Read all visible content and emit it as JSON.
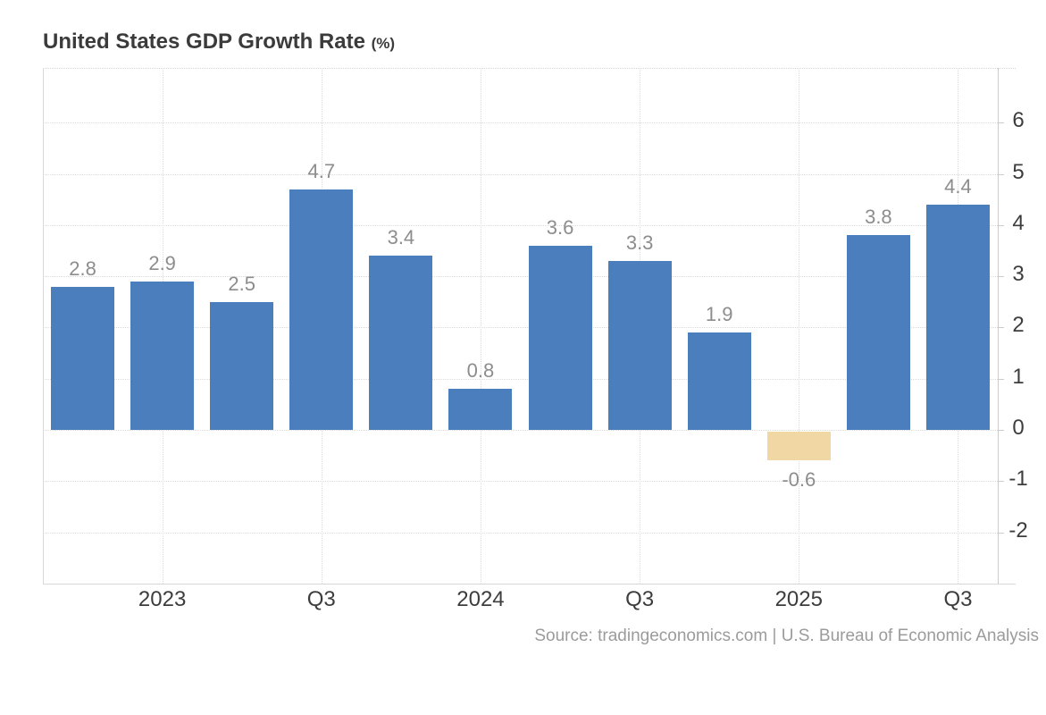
{
  "page": {
    "title": "United States GDP Growth Rate",
    "title_suffix": "(%)",
    "source_text": "Source: tradingeconomics.com | U.S. Bureau of Economic Analysis"
  },
  "chart_data": {
    "type": "bar",
    "title": "United States GDP Growth Rate (%)",
    "values": [
      2.8,
      2.9,
      2.5,
      4.7,
      3.4,
      0.8,
      3.6,
      3.3,
      1.9,
      -0.6,
      3.8,
      4.4
    ],
    "bar_labels": [
      "2.8",
      "2.9",
      "2.5",
      "4.7",
      "3.4",
      "0.8",
      "3.6",
      "3.3",
      "1.9",
      "-0.6",
      "3.8",
      "4.4"
    ],
    "x_tick_labels": [
      "",
      "2023",
      "",
      "Q3",
      "",
      "2024",
      "",
      "Q3",
      "",
      "2025",
      "",
      "Q3"
    ],
    "y_ticks": [
      -2,
      -1,
      0,
      1,
      2,
      3,
      4,
      5,
      6
    ],
    "ylim": [
      -3,
      7.07
    ],
    "y_axis_side": "right",
    "grid": true,
    "legend": null,
    "bar_color_positive": "#4a7ebc",
    "bar_color_negative": "#f0d7a4",
    "value_label_color": "#8d8d8d",
    "axis_label_color": "#3d3d3d",
    "source": "Source: tradingeconomics.com | U.S. Bureau of Economic Analysis"
  }
}
